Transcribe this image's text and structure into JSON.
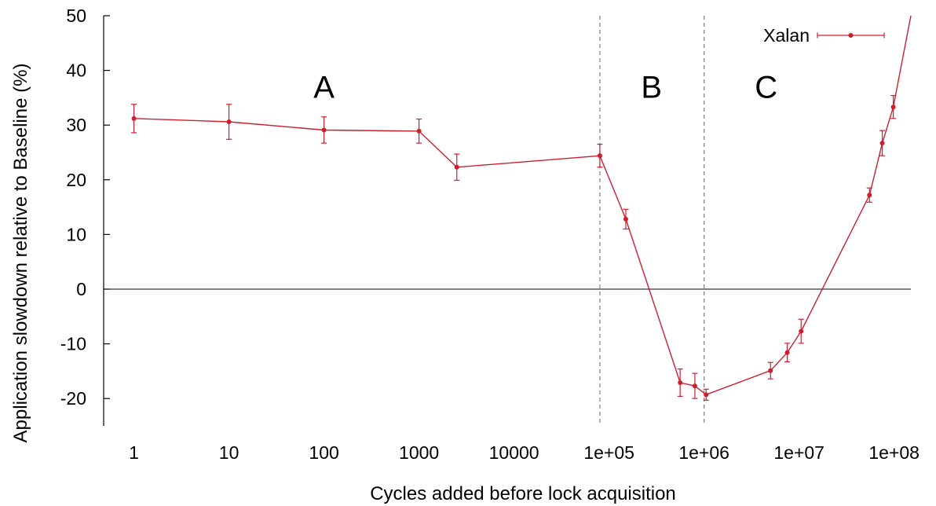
{
  "chart_data": {
    "type": "line",
    "title": "",
    "xlabel": "Cycles added before lock acquisition",
    "ylabel": "Application slowdown relative to Baseline (%)",
    "x_scale": "log",
    "xlim": [
      0.48,
      150000000
    ],
    "ylim": [
      -25,
      50
    ],
    "x_ticks": [
      {
        "value": 1,
        "label": "1"
      },
      {
        "value": 10,
        "label": "10"
      },
      {
        "value": 100,
        "label": "100"
      },
      {
        "value": 1000,
        "label": "1000"
      },
      {
        "value": 10000,
        "label": "10000"
      },
      {
        "value": 100000,
        "label": "1e+05"
      },
      {
        "value": 1000000,
        "label": "1e+06"
      },
      {
        "value": 10000000,
        "label": "1e+07"
      },
      {
        "value": 100000000,
        "label": "1e+08"
      }
    ],
    "y_ticks": [
      {
        "value": 50,
        "label": "50"
      },
      {
        "value": 40,
        "label": "40"
      },
      {
        "value": 30,
        "label": "30"
      },
      {
        "value": 20,
        "label": "20"
      },
      {
        "value": 10,
        "label": "10"
      },
      {
        "value": 0,
        "label": "0"
      },
      {
        "value": -10,
        "label": "-10"
      },
      {
        "value": -20,
        "label": "-20"
      }
    ],
    "zero_line": true,
    "grid": false,
    "legend": {
      "position": "top-right"
    },
    "region_dividers": [
      80000,
      1000000
    ],
    "regions": [
      {
        "label": "A",
        "x": 100,
        "y": 37
      },
      {
        "label": "B",
        "x": 280000,
        "y": 37
      },
      {
        "label": "C",
        "x": 4500000,
        "y": 37
      }
    ],
    "series": [
      {
        "name": "Xalan",
        "color": "#cc1f2e",
        "points": [
          {
            "x": 1,
            "y": 31.2,
            "err": 2.6
          },
          {
            "x": 10,
            "y": 30.6,
            "err": 3.2
          },
          {
            "x": 100,
            "y": 29.1,
            "err": 2.4
          },
          {
            "x": 1000,
            "y": 28.9,
            "err": 2.2
          },
          {
            "x": 2500,
            "y": 22.3,
            "err": 2.4
          },
          {
            "x": 80000,
            "y": 24.4,
            "err": 2.1
          },
          {
            "x": 150000,
            "y": 12.8,
            "err": 1.8
          },
          {
            "x": 560000,
            "y": -17.1,
            "err": 2.5
          },
          {
            "x": 800000,
            "y": -17.7,
            "err": 2.3
          },
          {
            "x": 1050000,
            "y": -19.3,
            "err": 1.0
          },
          {
            "x": 5000000,
            "y": -14.9,
            "err": 1.5
          },
          {
            "x": 7500000,
            "y": -11.6,
            "err": 1.7
          },
          {
            "x": 10500000,
            "y": -7.7,
            "err": 2.2
          },
          {
            "x": 55000000,
            "y": 17.2,
            "err": 1.3
          },
          {
            "x": 75000000,
            "y": 26.7,
            "err": 2.3
          },
          {
            "x": 98000000,
            "y": 33.3,
            "err": 2.1
          },
          {
            "x": 150000000,
            "y": 50,
            "err": 0
          }
        ]
      }
    ]
  }
}
